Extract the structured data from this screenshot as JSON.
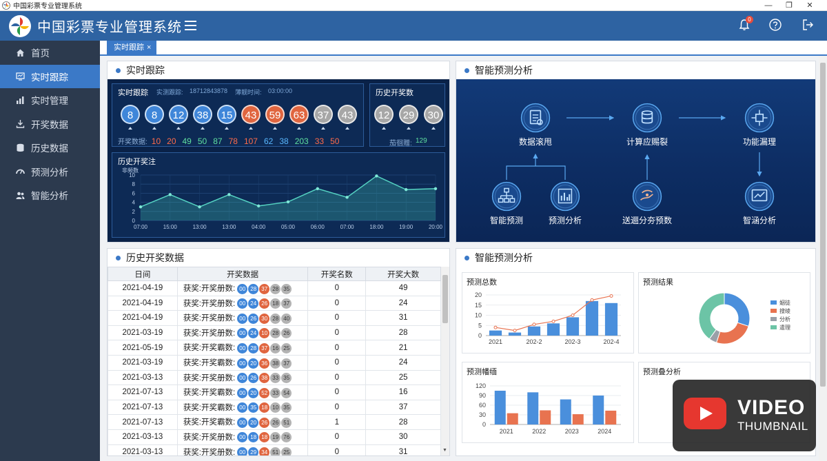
{
  "window": {
    "title": "中国彩票专业管理系统",
    "controls": [
      "—",
      "❐",
      "✕"
    ]
  },
  "header": {
    "app_title": "中国彩票专业管理系统",
    "notification_count": "0"
  },
  "sidebar": {
    "items": [
      {
        "label": "首页",
        "icon": "home-icon"
      },
      {
        "label": "实时跟踪",
        "icon": "monitor-icon",
        "active": true
      },
      {
        "label": "实时管理",
        "icon": "bar-chart-icon"
      },
      {
        "label": "开奖数据",
        "icon": "download-icon"
      },
      {
        "label": "历史数据",
        "icon": "database-icon"
      },
      {
        "label": "预测分析",
        "icon": "dashboard-icon"
      },
      {
        "label": "智能分析",
        "icon": "users-icon"
      }
    ]
  },
  "tabs": [
    {
      "label": "实时跟踪"
    }
  ],
  "live_panel": {
    "title": "实时跟踪",
    "inner_title": "实时跟踪",
    "meta_id_label": "实测跟踪:",
    "meta_id": "18712843878",
    "meta_time_label": "薄靓时间:",
    "meta_time": "03:00:00",
    "balls": [
      {
        "n": "8",
        "c": "blue"
      },
      {
        "n": "8",
        "c": "blue"
      },
      {
        "n": "12",
        "c": "blue"
      },
      {
        "n": "38",
        "c": "blue"
      },
      {
        "n": "15",
        "c": "blue"
      },
      {
        "n": "43",
        "c": "red"
      },
      {
        "n": "59",
        "c": "red"
      },
      {
        "n": "63",
        "c": "red"
      },
      {
        "n": "37",
        "c": "gray"
      },
      {
        "n": "43",
        "c": "gray"
      }
    ],
    "numbers_label": "开奖数据:",
    "numbers": [
      {
        "v": "10",
        "c": "#ff6b4a"
      },
      {
        "v": "20",
        "c": "#ff6b4a"
      },
      {
        "v": "49",
        "c": "#5fe0a0"
      },
      {
        "v": "50",
        "c": "#5fe0a0"
      },
      {
        "v": "87",
        "c": "#5fe0a0"
      },
      {
        "v": "78",
        "c": "#ff6b4a"
      },
      {
        "v": "107",
        "c": "#ff6b4a"
      },
      {
        "v": "62",
        "c": "#5ab8ff"
      },
      {
        "v": "38",
        "c": "#5ab8ff"
      },
      {
        "v": "203",
        "c": "#5fe0a0"
      },
      {
        "v": "33",
        "c": "#ff6b4a"
      },
      {
        "v": "50",
        "c": "#ff6b4a"
      }
    ],
    "history_title": "历史开奖数",
    "history_balls": [
      "12",
      "29",
      "30"
    ],
    "history_footer_label": "茄徊赠:",
    "history_footer_value": "129"
  },
  "trend": {
    "title": "历史开奖注",
    "chart_data": {
      "type": "area",
      "ylabel": "非频数",
      "ylim": [
        0,
        10
      ],
      "y_ticks": [
        "0",
        "2",
        "4",
        "6",
        "8",
        "10"
      ],
      "categories": [
        "07:00",
        "15:00",
        "13:00",
        "13:00",
        "04:00",
        "05:00",
        "06:00",
        "07:00",
        "18:00",
        "19:00",
        "20:00"
      ],
      "values": [
        3,
        5.7,
        3,
        5.7,
        3.2,
        4.1,
        7,
        5.1,
        9.8,
        6.8,
        7
      ]
    }
  },
  "ai_flow": {
    "title": "智能预测分析",
    "nodes": {
      "n1": {
        "label": "数据滚甩"
      },
      "n2": {
        "label": "计算应赐裂"
      },
      "n3": {
        "label": "功能漏理"
      },
      "n4": {
        "label": "智能预测"
      },
      "n5": {
        "label": "预测分析"
      },
      "n6": {
        "label": "送逦分夯预数"
      },
      "n7": {
        "label": "智涵分析"
      }
    }
  },
  "history": {
    "title": "历史开奖数据",
    "columns": [
      "日间",
      "开奖数据",
      "开奖名数",
      "开奖大数"
    ],
    "rows": [
      {
        "date": "2021-04-19",
        "prefix": "获奖:开奖册数:",
        "balls": [
          "00",
          "28",
          "37",
          "28",
          "35"
        ],
        "c1": "0",
        "c2": "49"
      },
      {
        "date": "2021-04-19",
        "prefix": "获奖:开奖册数:",
        "balls": [
          "00",
          "24",
          "26",
          "18",
          "37"
        ],
        "c1": "0",
        "c2": "24"
      },
      {
        "date": "2021-04-19",
        "prefix": "获奖:开奖册数:",
        "balls": [
          "00",
          "26",
          "30",
          "28",
          "40"
        ],
        "c1": "0",
        "c2": "31"
      },
      {
        "date": "2021-03-19",
        "prefix": "获奖:开奖册数:",
        "balls": [
          "00",
          "24",
          "10",
          "28",
          "26"
        ],
        "c1": "0",
        "c2": "28"
      },
      {
        "date": "2021-05-19",
        "prefix": "获奖:开奖霸数:",
        "balls": [
          "00",
          "28",
          "37",
          "16",
          "25"
        ],
        "c1": "0",
        "c2": "21"
      },
      {
        "date": "2021-03-19",
        "prefix": "获奖:开奖霸数:",
        "balls": [
          "00",
          "20",
          "36",
          "38",
          "37"
        ],
        "c1": "0",
        "c2": "24"
      },
      {
        "date": "2021-03-13",
        "prefix": "获奖:开奖册数:",
        "balls": [
          "00",
          "26",
          "38",
          "33",
          "35"
        ],
        "c1": "0",
        "c2": "25"
      },
      {
        "date": "2021-07-13",
        "prefix": "获奖:开奖霸数:",
        "balls": [
          "00",
          "20",
          "52",
          "33",
          "54"
        ],
        "c1": "0",
        "c2": "16"
      },
      {
        "date": "2021-07-13",
        "prefix": "获奖:开奖霸数:",
        "balls": [
          "00",
          "35",
          "18",
          "10",
          "35"
        ],
        "c1": "0",
        "c2": "37"
      },
      {
        "date": "2021-07-13",
        "prefix": "获奖:开奖霸数:",
        "balls": [
          "00",
          "20",
          "26",
          "26",
          "51"
        ],
        "c1": "1",
        "c2": "28"
      },
      {
        "date": "2021-03-13",
        "prefix": "获奖:开奖册数:",
        "balls": [
          "00",
          "18",
          "18",
          "19",
          "76"
        ],
        "c1": "0",
        "c2": "30"
      },
      {
        "date": "2021-03-13",
        "prefix": "获奖:开奖册数:",
        "balls": [
          "00",
          "29",
          "34",
          "51",
          "25"
        ],
        "c1": "0",
        "c2": "31"
      }
    ]
  },
  "ai_charts": {
    "title": "智能预测分析",
    "total": {
      "title": "预测总数",
      "chart_data": {
        "type": "bar",
        "categories": [
          "2021",
          "",
          "202-2",
          "",
          "202-3",
          "",
          "202-4"
        ],
        "x_ticks": [
          "2021",
          "202-2",
          "202-3",
          "202-4"
        ],
        "y_ticks": [
          "0",
          "5",
          "10",
          "15",
          "20"
        ],
        "ylim": [
          0,
          20
        ],
        "series": [
          {
            "type": "bar",
            "values": [
              2.5,
              1.5,
              4.5,
              6,
              9,
              17,
              16
            ]
          },
          {
            "type": "line",
            "values": [
              4,
              2.5,
              5.5,
              7,
              10,
              17.5,
              19.5
            ]
          }
        ]
      }
    },
    "result": {
      "title": "预测结果",
      "chart_data": {
        "type": "pie",
        "labels": [
          "姻徒",
          "搜绫",
          "分析",
          "遣理"
        ],
        "values": [
          30,
          25,
          5,
          40
        ],
        "colors": [
          "#4a8fdc",
          "#e87350",
          "#9aa0a8",
          "#6cc4a6"
        ]
      }
    },
    "trend": {
      "title": "预测幡缅",
      "chart_data": {
        "type": "bar",
        "categories": [
          "2021",
          "2022",
          "2023",
          "2024"
        ],
        "y_ticks": [
          "0",
          "30",
          "60",
          "90",
          "120"
        ],
        "ylim": [
          0,
          120
        ],
        "series": [
          {
            "values": [
              105,
              100,
              78,
              90
            ]
          },
          {
            "values": [
              35,
              44,
              32,
              43
            ]
          }
        ]
      }
    },
    "overlay": {
      "title": "预测叠分析"
    }
  },
  "video_overlay": {
    "line1": "VIDEO",
    "line2": "THUMBNAIL"
  }
}
